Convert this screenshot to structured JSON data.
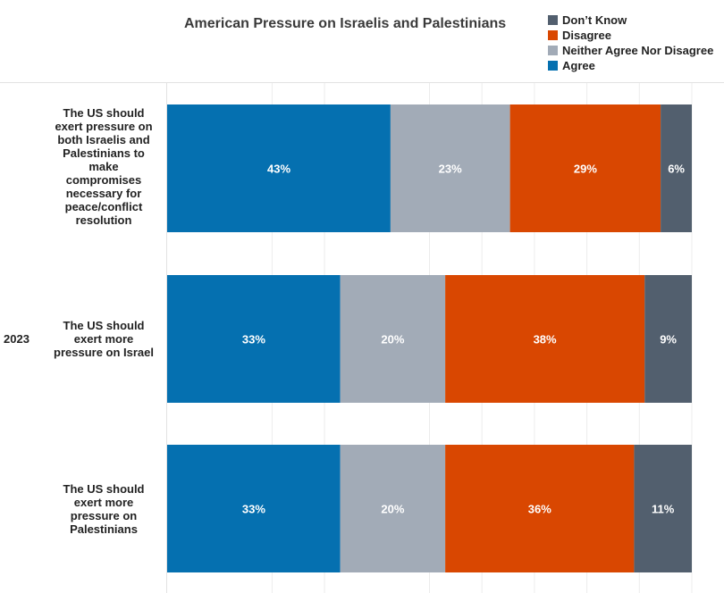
{
  "chart_data": {
    "type": "bar",
    "orientation": "horizontal",
    "stacked": true,
    "title": "American Pressure on Israelis and Palestinians",
    "group_label": "2023",
    "categories": [
      "The US should\nexert pressure on\nboth Israelis and\nPalestinians to\nmake\ncompromises\nnecessary for\npeace/conflict\nresolution",
      "The US should\nexert more\npressure on Israel",
      "The US should\nexert more\npressure on\nPalestinians"
    ],
    "series": [
      {
        "name": "Agree",
        "color": "#0570b0",
        "values": [
          43,
          33,
          33
        ],
        "labels": [
          "43%",
          "33%",
          "33%"
        ]
      },
      {
        "name": "Neither Agree Nor Disagree",
        "color": "#a2abb7",
        "values": [
          23,
          20,
          20
        ],
        "labels": [
          "23%",
          "20%",
          "20%"
        ]
      },
      {
        "name": "Disagree",
        "color": "#d94701",
        "values": [
          29,
          38,
          36
        ],
        "labels": [
          "29%",
          "38%",
          "36%"
        ]
      },
      {
        "name": "Don’t Know",
        "color": "#525f6e",
        "values": [
          6,
          9,
          11
        ],
        "labels": [
          "6%",
          "9%",
          "11%"
        ]
      }
    ],
    "legend": {
      "position": "top-right",
      "order": [
        "Don’t Know",
        "Disagree",
        "Neither Agree Nor Disagree",
        "Agree"
      ]
    },
    "xlim": [
      0,
      100
    ],
    "grid": true
  }
}
